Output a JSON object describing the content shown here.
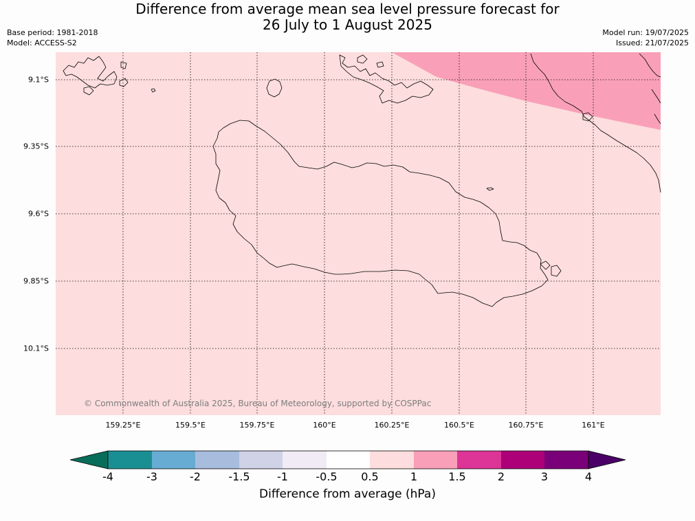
{
  "title": {
    "line1": "Difference from average mean sea level pressure forecast for",
    "line2": "26 July to 1 August 2025"
  },
  "meta": {
    "base_period": "Base period: 1981-2018",
    "model": "Model: ACCESS-S2",
    "model_run": "Model run: 19/07/2025",
    "issued": "Issued: 21/07/2025"
  },
  "map": {
    "x_ticks": [
      "159.25°E",
      "159.5°E",
      "159.75°E",
      "160°E",
      "160.25°E",
      "160.5°E",
      "160.75°E",
      "161°E"
    ],
    "y_ticks": [
      "9.1°S",
      "9.35°S",
      "9.6°S",
      "9.85°S",
      "10.1°S"
    ],
    "background_color": "#fddddd",
    "shaded_region_color": "#f9a0b8",
    "copyright": "© Commonwealth of Australia 2025, Bureau of Meteorology, supported by COSPPac"
  },
  "colorbar": {
    "label": "Difference from average (hPa)",
    "tick_labels": [
      "-4",
      "-3",
      "-2",
      "-1.5",
      "-1",
      "-0.5",
      "0.5",
      "1",
      "1.5",
      "2",
      "3",
      "4"
    ],
    "colors": [
      "#1a8f93",
      "#67acd2",
      "#a8bcdd",
      "#d0d2e8",
      "#f0ebf4",
      "#ffffff",
      "#fddddd",
      "#f9a0b8",
      "#dc3597",
      "#ad0078",
      "#7a0079"
    ],
    "under_color": "#086e5b",
    "over_color": "#4a0066"
  }
}
